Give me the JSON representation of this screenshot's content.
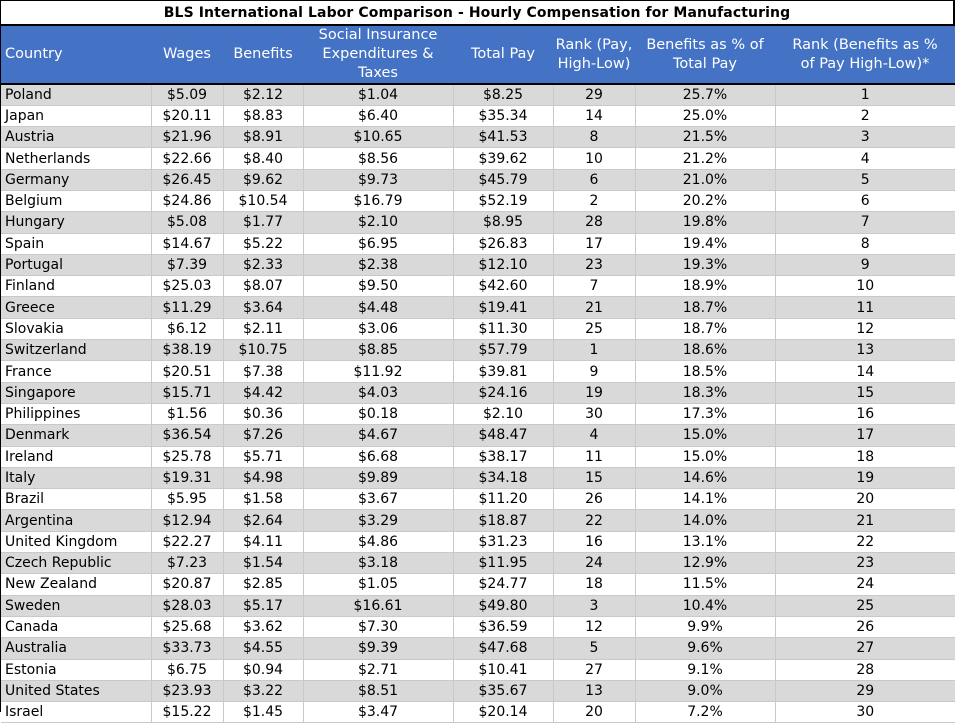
{
  "title": "BLS International Labor Comparison - Hourly Compensation for Manufacturing",
  "headers": {
    "country": "Country",
    "wages": "Wages",
    "benefits": "Benefits",
    "social_line1": "Social Insurance",
    "social_line2": "Expenditures & Taxes",
    "total_pay": "Total Pay",
    "rank_pay_line1": "Rank (Pay,",
    "rank_pay_line2": "High-Low)",
    "benefits_pct_line1": "Benefits as % of",
    "benefits_pct_line2": "Total Pay",
    "rank_benefits_line1": "Rank (Benefits as %",
    "rank_benefits_line2": "of Pay High-Low)*"
  },
  "colors": {
    "header_bg": "#4472c4",
    "header_text": "#ffffff",
    "band_row": "#d9d9d9"
  },
  "rows": [
    {
      "country": "Poland",
      "wages": "$5.09",
      "benefits": "$2.12",
      "social": "$1.04",
      "total": "$8.25",
      "rank_pay": "29",
      "pct": "25.7%",
      "rank_benefits": "1"
    },
    {
      "country": "Japan",
      "wages": "$20.11",
      "benefits": "$8.83",
      "social": "$6.40",
      "total": "$35.34",
      "rank_pay": "14",
      "pct": "25.0%",
      "rank_benefits": "2"
    },
    {
      "country": "Austria",
      "wages": "$21.96",
      "benefits": "$8.91",
      "social": "$10.65",
      "total": "$41.53",
      "rank_pay": "8",
      "pct": "21.5%",
      "rank_benefits": "3"
    },
    {
      "country": "Netherlands",
      "wages": "$22.66",
      "benefits": "$8.40",
      "social": "$8.56",
      "total": "$39.62",
      "rank_pay": "10",
      "pct": "21.2%",
      "rank_benefits": "4"
    },
    {
      "country": "Germany",
      "wages": "$26.45",
      "benefits": "$9.62",
      "social": "$9.73",
      "total": "$45.79",
      "rank_pay": "6",
      "pct": "21.0%",
      "rank_benefits": "5"
    },
    {
      "country": "Belgium",
      "wages": "$24.86",
      "benefits": "$10.54",
      "social": "$16.79",
      "total": "$52.19",
      "rank_pay": "2",
      "pct": "20.2%",
      "rank_benefits": "6"
    },
    {
      "country": "Hungary",
      "wages": "$5.08",
      "benefits": "$1.77",
      "social": "$2.10",
      "total": "$8.95",
      "rank_pay": "28",
      "pct": "19.8%",
      "rank_benefits": "7"
    },
    {
      "country": "Spain",
      "wages": "$14.67",
      "benefits": "$5.22",
      "social": "$6.95",
      "total": "$26.83",
      "rank_pay": "17",
      "pct": "19.4%",
      "rank_benefits": "8"
    },
    {
      "country": "Portugal",
      "wages": "$7.39",
      "benefits": "$2.33",
      "social": "$2.38",
      "total": "$12.10",
      "rank_pay": "23",
      "pct": "19.3%",
      "rank_benefits": "9"
    },
    {
      "country": "Finland",
      "wages": "$25.03",
      "benefits": "$8.07",
      "social": "$9.50",
      "total": "$42.60",
      "rank_pay": "7",
      "pct": "18.9%",
      "rank_benefits": "10"
    },
    {
      "country": "Greece",
      "wages": "$11.29",
      "benefits": "$3.64",
      "social": "$4.48",
      "total": "$19.41",
      "rank_pay": "21",
      "pct": "18.7%",
      "rank_benefits": "11"
    },
    {
      "country": "Slovakia",
      "wages": "$6.12",
      "benefits": "$2.11",
      "social": "$3.06",
      "total": "$11.30",
      "rank_pay": "25",
      "pct": "18.7%",
      "rank_benefits": "12"
    },
    {
      "country": "Switzerland",
      "wages": "$38.19",
      "benefits": "$10.75",
      "social": "$8.85",
      "total": "$57.79",
      "rank_pay": "1",
      "pct": "18.6%",
      "rank_benefits": "13"
    },
    {
      "country": "France",
      "wages": "$20.51",
      "benefits": "$7.38",
      "social": "$11.92",
      "total": "$39.81",
      "rank_pay": "9",
      "pct": "18.5%",
      "rank_benefits": "14"
    },
    {
      "country": "Singapore",
      "wages": "$15.71",
      "benefits": "$4.42",
      "social": "$4.03",
      "total": "$24.16",
      "rank_pay": "19",
      "pct": "18.3%",
      "rank_benefits": "15"
    },
    {
      "country": "Philippines",
      "wages": "$1.56",
      "benefits": "$0.36",
      "social": "$0.18",
      "total": "$2.10",
      "rank_pay": "30",
      "pct": "17.3%",
      "rank_benefits": "16"
    },
    {
      "country": "Denmark",
      "wages": "$36.54",
      "benefits": "$7.26",
      "social": "$4.67",
      "total": "$48.47",
      "rank_pay": "4",
      "pct": "15.0%",
      "rank_benefits": "17"
    },
    {
      "country": "Ireland",
      "wages": "$25.78",
      "benefits": "$5.71",
      "social": "$6.68",
      "total": "$38.17",
      "rank_pay": "11",
      "pct": "15.0%",
      "rank_benefits": "18"
    },
    {
      "country": "Italy",
      "wages": "$19.31",
      "benefits": "$4.98",
      "social": "$9.89",
      "total": "$34.18",
      "rank_pay": "15",
      "pct": "14.6%",
      "rank_benefits": "19"
    },
    {
      "country": "Brazil",
      "wages": "$5.95",
      "benefits": "$1.58",
      "social": "$3.67",
      "total": "$11.20",
      "rank_pay": "26",
      "pct": "14.1%",
      "rank_benefits": "20"
    },
    {
      "country": "Argentina",
      "wages": "$12.94",
      "benefits": "$2.64",
      "social": "$3.29",
      "total": "$18.87",
      "rank_pay": "22",
      "pct": "14.0%",
      "rank_benefits": "21"
    },
    {
      "country": "United Kingdom",
      "wages": "$22.27",
      "benefits": "$4.11",
      "social": "$4.86",
      "total": "$31.23",
      "rank_pay": "16",
      "pct": "13.1%",
      "rank_benefits": "22"
    },
    {
      "country": "Czech Republic",
      "wages": "$7.23",
      "benefits": "$1.54",
      "social": "$3.18",
      "total": "$11.95",
      "rank_pay": "24",
      "pct": "12.9%",
      "rank_benefits": "23"
    },
    {
      "country": "New Zealand",
      "wages": "$20.87",
      "benefits": "$2.85",
      "social": "$1.05",
      "total": "$24.77",
      "rank_pay": "18",
      "pct": "11.5%",
      "rank_benefits": "24"
    },
    {
      "country": "Sweden",
      "wages": "$28.03",
      "benefits": "$5.17",
      "social": "$16.61",
      "total": "$49.80",
      "rank_pay": "3",
      "pct": "10.4%",
      "rank_benefits": "25"
    },
    {
      "country": "Canada",
      "wages": "$25.68",
      "benefits": "$3.62",
      "social": "$7.30",
      "total": "$36.59",
      "rank_pay": "12",
      "pct": "9.9%",
      "rank_benefits": "26"
    },
    {
      "country": "Australia",
      "wages": "$33.73",
      "benefits": "$4.55",
      "social": "$9.39",
      "total": "$47.68",
      "rank_pay": "5",
      "pct": "9.6%",
      "rank_benefits": "27"
    },
    {
      "country": "Estonia",
      "wages": "$6.75",
      "benefits": "$0.94",
      "social": "$2.71",
      "total": "$10.41",
      "rank_pay": "27",
      "pct": "9.1%",
      "rank_benefits": "28"
    },
    {
      "country": "United States",
      "wages": "$23.93",
      "benefits": "$3.22",
      "social": "$8.51",
      "total": "$35.67",
      "rank_pay": "13",
      "pct": "9.0%",
      "rank_benefits": "29"
    },
    {
      "country": "Israel",
      "wages": "$15.22",
      "benefits": "$1.45",
      "social": "$3.47",
      "total": "$20.14",
      "rank_pay": "20",
      "pct": "7.2%",
      "rank_benefits": "30"
    }
  ]
}
